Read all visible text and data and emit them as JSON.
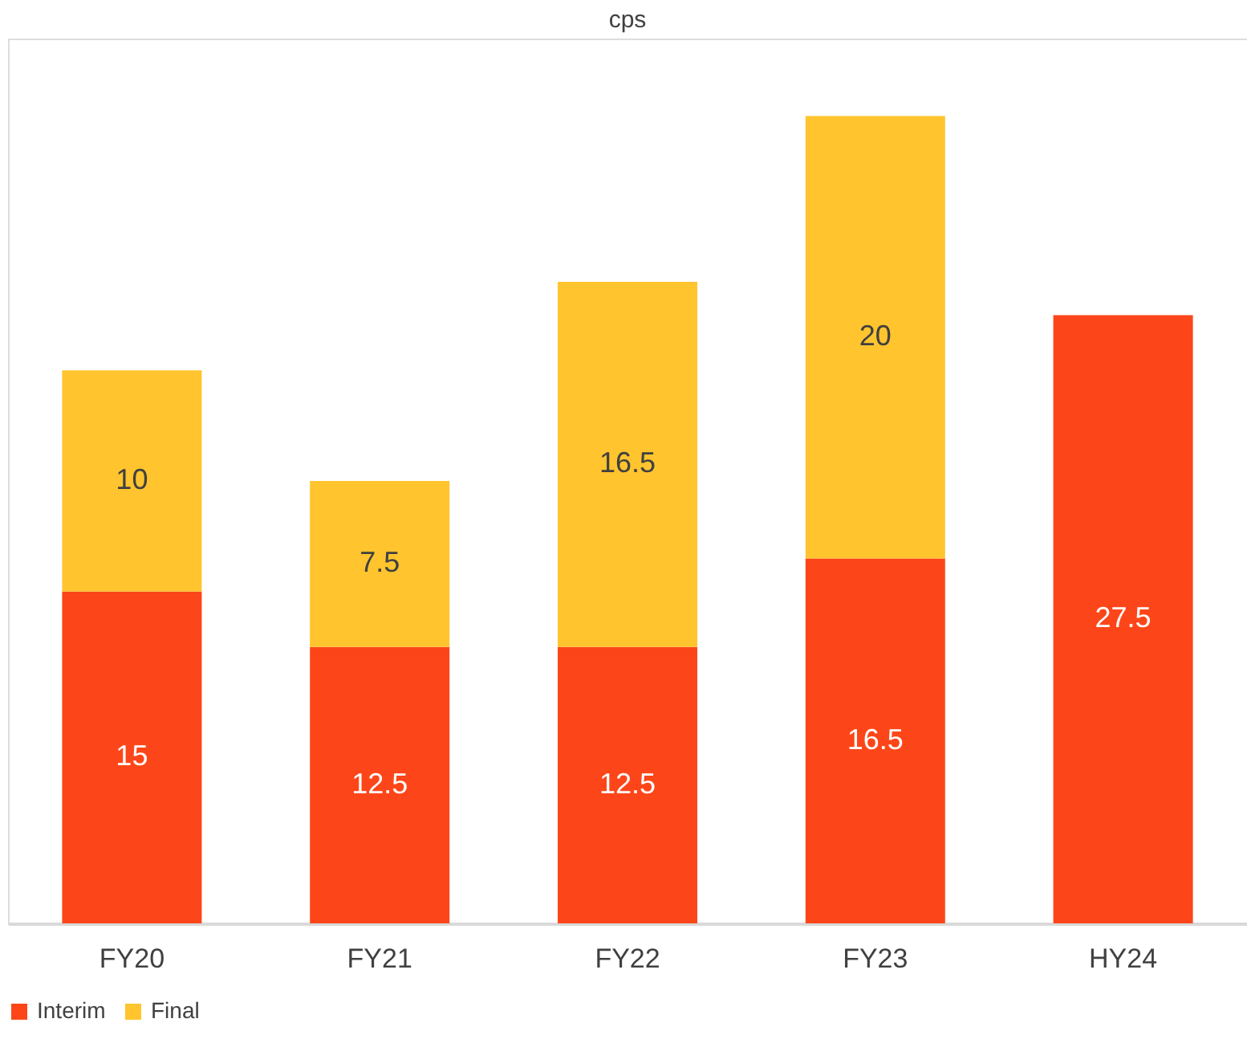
{
  "chart_data": {
    "type": "bar",
    "title": "cps",
    "stacked": true,
    "data_labels": true,
    "legend": "bottom",
    "grid": false,
    "categories": [
      "FY20",
      "FY21",
      "FY22",
      "FY23",
      "HY24"
    ],
    "series": [
      {
        "name": "Interim",
        "color": "#fc4619",
        "values": [
          15,
          12.5,
          12.5,
          16.5,
          27.5
        ]
      },
      {
        "name": "Final",
        "color": "#ffc42e",
        "values": [
          10,
          7.5,
          16.5,
          20,
          null
        ]
      }
    ]
  }
}
